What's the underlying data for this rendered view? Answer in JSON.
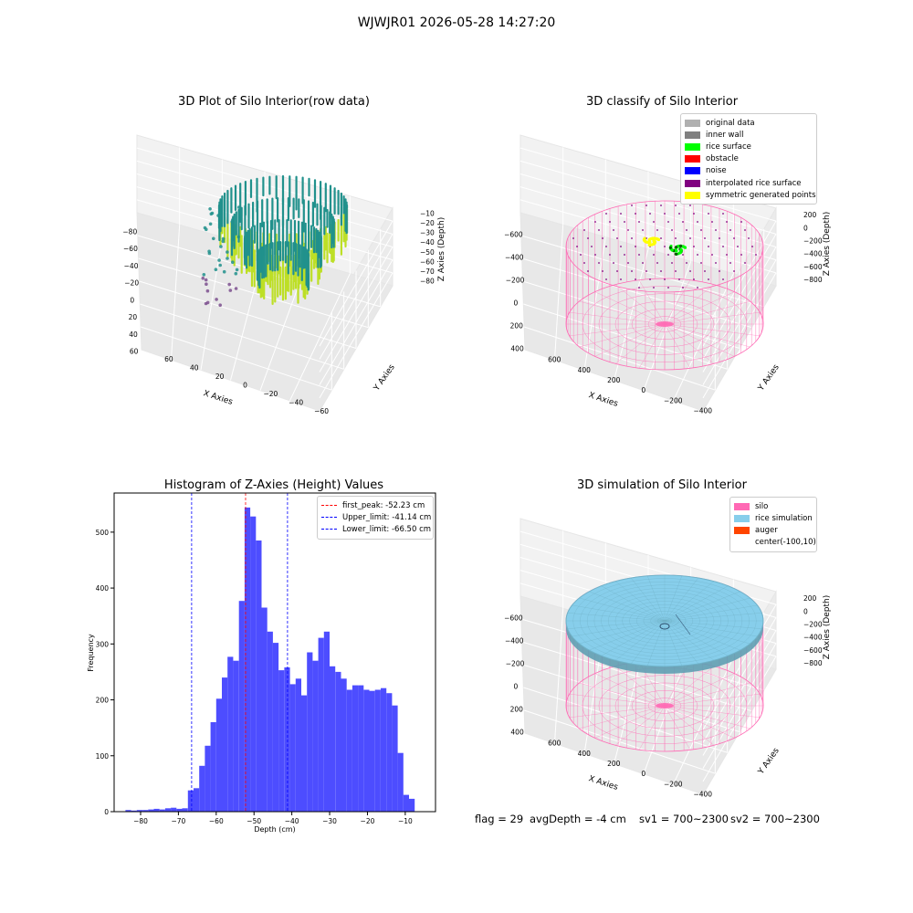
{
  "figure": {
    "suptitle": "WJWJR01 2026-05-28 14:27:20",
    "status": {
      "flag": "flag = 29",
      "avg_depth": "avgDepth = -4 cm",
      "sv1": "sv1 = 700~2300",
      "sv2": "sv2 = 700~2300"
    }
  },
  "chart_data": [
    {
      "type": "scatter",
      "projection": "3d",
      "title": "3D Plot of Silo Interior(row data)",
      "xlabel": "X Axies",
      "ylabel": "Y Axies",
      "zlabel": "Z Axies (Depth)",
      "xticks": [
        "−80",
        "−60",
        "−40",
        "−20",
        "0",
        "20",
        "40",
        "60"
      ],
      "yticks": [
        "−60",
        "−40",
        "−20",
        "0",
        "20",
        "40",
        "60"
      ],
      "zticks": [
        "−10",
        "−20",
        "−30",
        "−40",
        "−50",
        "−60",
        "−70",
        "−80"
      ],
      "xlim": [
        -85,
        70
      ],
      "ylim": [
        -65,
        65
      ],
      "zlim": [
        -85,
        -5
      ],
      "colormap": "viridis",
      "colors": {
        "points_low": "#3b528b",
        "points_mid": "#21918c",
        "points_high": "#bddf26"
      },
      "legend": []
    },
    {
      "type": "scatter",
      "projection": "3d",
      "title": "3D classify of Silo Interior",
      "xlabel": "X Axies",
      "ylabel": "Y Axies",
      "zlabel": "Z Axies (Depth)",
      "xticks": [
        "−600",
        "−400",
        "−200",
        "0",
        "200",
        "400"
      ],
      "yticks": [
        "−400",
        "−200",
        "0",
        "200",
        "400",
        "600"
      ],
      "zticks": [
        "200",
        "0",
        "−200",
        "−400",
        "−600",
        "−800"
      ],
      "xlim": [
        -700,
        500
      ],
      "ylim": [
        -500,
        650
      ],
      "zlim": [
        -850,
        250
      ],
      "legend_position": "top-right",
      "legend": [
        {
          "label": "original data",
          "color": "#b0b0b0"
        },
        {
          "label": "inner wall",
          "color": "#808080"
        },
        {
          "label": "rice surface",
          "color": "#00ff00"
        },
        {
          "label": "obstacle",
          "color": "#ff0000"
        },
        {
          "label": "noise",
          "color": "#0000ff"
        },
        {
          "label": "interpolated rice surface",
          "color": "#800080"
        },
        {
          "label": "symmetric generated points",
          "color": "#ffff00"
        }
      ],
      "wireframe_color": "#ff69b4"
    },
    {
      "type": "histogram",
      "title": "Histogram of Z-Axies (Height) Values",
      "xlabel": "Depth (cm)",
      "ylabel": "Frequency",
      "xlim": [
        -87,
        -2
      ],
      "ylim": [
        0,
        570
      ],
      "xticks": [
        -80,
        -70,
        -60,
        -50,
        -40,
        -30,
        -20,
        -10
      ],
      "yticks": [
        0,
        100,
        200,
        300,
        400,
        500
      ],
      "bar_color": "#4d4dff",
      "bin_width": 1.5,
      "bins_start": [
        -84.0,
        -82.5,
        -81.0,
        -79.5,
        -78.0,
        -76.5,
        -75.0,
        -73.5,
        -72.0,
        -70.5,
        -69.0,
        -67.5,
        -66.0,
        -64.5,
        -63.0,
        -61.5,
        -60.0,
        -58.5,
        -57.0,
        -55.5,
        -54.0,
        -52.5,
        -51.0,
        -49.5,
        -48.0,
        -46.5,
        -45.0,
        -43.5,
        -42.0,
        -40.5,
        -39.0,
        -37.5,
        -36.0,
        -34.5,
        -33.0,
        -31.5,
        -30.0,
        -28.5,
        -27.0,
        -25.5,
        -24.0,
        -22.5,
        -21.0,
        -19.5,
        -18.0,
        -16.5,
        -15.0,
        -13.5,
        -12.0,
        -10.5,
        -9.0,
        -7.5,
        -6.0
      ],
      "values": [
        3,
        2,
        3,
        3,
        4,
        5,
        4,
        6,
        7,
        5,
        6,
        38,
        42,
        82,
        118,
        160,
        202,
        240,
        277,
        270,
        377,
        544,
        528,
        485,
        365,
        322,
        302,
        253,
        258,
        228,
        238,
        208,
        285,
        270,
        311,
        322,
        260,
        250,
        238,
        218,
        226,
        226,
        218,
        216,
        218,
        221,
        212,
        190,
        105,
        30,
        23,
        0,
        0
      ],
      "reference_lines": [
        {
          "label": "first_peak: -52.23 cm",
          "x": -52.23,
          "color": "#ff0000"
        },
        {
          "label": "Upper_limit: -41.14 cm",
          "x": -41.14,
          "color": "#0000ff"
        },
        {
          "label": "Lower_limit: -66.50 cm",
          "x": -66.5,
          "color": "#0000ff"
        }
      ],
      "legend_position": "top-right"
    },
    {
      "type": "surface",
      "projection": "3d",
      "title": "3D simulation of Silo Interior",
      "xlabel": "X Axies",
      "ylabel": "Y Axies",
      "zlabel": "Z Axies (Depth)",
      "xticks": [
        "−600",
        "−400",
        "−200",
        "0",
        "200",
        "400"
      ],
      "yticks": [
        "−400",
        "−200",
        "0",
        "200",
        "400",
        "600"
      ],
      "zticks": [
        "200",
        "0",
        "−200",
        "−400",
        "−600",
        "−800"
      ],
      "xlim": [
        -700,
        500
      ],
      "ylim": [
        -500,
        650
      ],
      "zlim": [
        -850,
        250
      ],
      "legend_position": "top-right",
      "legend": [
        {
          "label": "silo",
          "color": "#ff69b4"
        },
        {
          "label": "rice simulation",
          "color": "#87ceeb"
        },
        {
          "label": "auger",
          "color": "#ff4500"
        },
        {
          "label": "center(-100,10)",
          "color": ""
        }
      ]
    }
  ]
}
